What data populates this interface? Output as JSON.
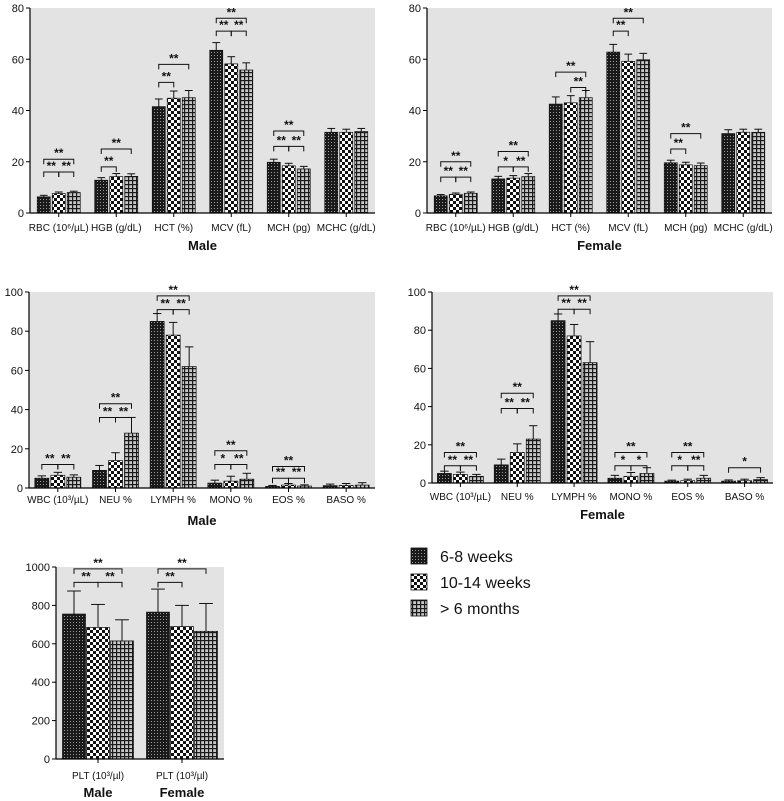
{
  "legend": {
    "placement": "right",
    "entries": [
      {
        "label": "6-8 weeks",
        "pattern": "dots-dense"
      },
      {
        "label": "10-14 weeks",
        "pattern": "checker"
      },
      {
        "label": "> 6 months",
        "pattern": "grid"
      }
    ]
  },
  "colors": {
    "panel_bg": "#e3e3e3",
    "bar_ink": "#1a1a1a",
    "axis": "#000000"
  },
  "chart_data": [
    {
      "type": "bar",
      "title": "Male",
      "ylim": [
        0,
        80
      ],
      "yticks": [
        0,
        20,
        40,
        60,
        80
      ],
      "grid": false,
      "categories": [
        "RBC (10⁶/µL)",
        "HGB (g/dL)",
        "HCT (%)",
        "MCV (fL)",
        "MCH (pg)",
        "MCHC (g/dL)"
      ],
      "series": [
        {
          "name": "6-8 weeks",
          "values": [
            6.3,
            12.8,
            41.5,
            63.5,
            19.8,
            31.5
          ],
          "errors": [
            0.6,
            1.0,
            3.0,
            3.0,
            1.2,
            1.5
          ]
        },
        {
          "name": "10-14 weeks",
          "values": [
            7.6,
            14.2,
            44.8,
            58.2,
            18.4,
            31.5
          ],
          "errors": [
            0.6,
            1.2,
            2.8,
            2.8,
            1.0,
            1.2
          ]
        },
        {
          "name": "> 6 months",
          "values": [
            8.0,
            14.3,
            45.0,
            55.8,
            17.2,
            31.8
          ],
          "errors": [
            0.5,
            1.0,
            2.8,
            2.8,
            1.0,
            1.2
          ]
        }
      ],
      "annotations": [
        {
          "category": 0,
          "from": 0,
          "to": 2,
          "label": "**",
          "y": 21
        },
        {
          "category": 0,
          "from": 0,
          "to": 1,
          "label": "**",
          "y": 16
        },
        {
          "category": 0,
          "from": 1,
          "to": 2,
          "label": "**",
          "y": 16
        },
        {
          "category": 1,
          "from": 0,
          "to": 2,
          "label": "**",
          "y": 25
        },
        {
          "category": 1,
          "from": 0,
          "to": 1,
          "label": "**",
          "y": 18
        },
        {
          "category": 2,
          "from": 0,
          "to": 2,
          "label": "**",
          "y": 58
        },
        {
          "category": 2,
          "from": 0,
          "to": 1,
          "label": "**",
          "y": 51
        },
        {
          "category": 3,
          "from": 0,
          "to": 2,
          "label": "**",
          "y": 76
        },
        {
          "category": 3,
          "from": 0,
          "to": 1,
          "label": "**",
          "y": 71
        },
        {
          "category": 3,
          "from": 1,
          "to": 2,
          "label": "**",
          "y": 71
        },
        {
          "category": 4,
          "from": 0,
          "to": 2,
          "label": "**",
          "y": 32
        },
        {
          "category": 4,
          "from": 0,
          "to": 1,
          "label": "**",
          "y": 26
        },
        {
          "category": 4,
          "from": 1,
          "to": 2,
          "label": "**",
          "y": 26
        }
      ]
    },
    {
      "type": "bar",
      "title": "Female",
      "ylim": [
        0,
        80
      ],
      "yticks": [
        0,
        20,
        40,
        60,
        80
      ],
      "grid": false,
      "categories": [
        "RBC (10⁶/µL)",
        "HGB (g/dL)",
        "HCT (%)",
        "MCV (fL)",
        "MCH (pg)",
        "MCHC (g/dL)"
      ],
      "series": [
        {
          "name": "6-8 weeks",
          "values": [
            6.7,
            13.3,
            42.5,
            62.8,
            19.6,
            31.0
          ],
          "errors": [
            0.5,
            1.0,
            2.8,
            3.0,
            1.0,
            1.5
          ]
        },
        {
          "name": "10-14 weeks",
          "values": [
            7.3,
            13.6,
            43.0,
            59.2,
            18.8,
            31.5
          ],
          "errors": [
            0.5,
            1.0,
            2.8,
            2.8,
            1.0,
            1.2
          ]
        },
        {
          "name": "> 6 months",
          "values": [
            7.7,
            14.2,
            45.0,
            59.8,
            18.5,
            31.5
          ],
          "errors": [
            0.5,
            1.2,
            2.8,
            2.5,
            1.0,
            1.2
          ]
        }
      ],
      "annotations": [
        {
          "category": 0,
          "from": 0,
          "to": 2,
          "label": "**",
          "y": 20
        },
        {
          "category": 0,
          "from": 0,
          "to": 1,
          "label": "**",
          "y": 14
        },
        {
          "category": 0,
          "from": 1,
          "to": 2,
          "label": "**",
          "y": 14
        },
        {
          "category": 1,
          "from": 0,
          "to": 2,
          "label": "**",
          "y": 24
        },
        {
          "category": 1,
          "from": 0,
          "to": 1,
          "label": "*",
          "y": 18
        },
        {
          "category": 1,
          "from": 1,
          "to": 2,
          "label": "**",
          "y": 18
        },
        {
          "category": 2,
          "from": 0,
          "to": 2,
          "label": "**",
          "y": 55
        },
        {
          "category": 2,
          "from": 1,
          "to": 2,
          "label": "**",
          "y": 49
        },
        {
          "category": 3,
          "from": 0,
          "to": 2,
          "label": "**",
          "y": 76
        },
        {
          "category": 3,
          "from": 0,
          "to": 1,
          "label": "**",
          "y": 71
        },
        {
          "category": 4,
          "from": 0,
          "to": 2,
          "label": "**",
          "y": 31
        },
        {
          "category": 4,
          "from": 0,
          "to": 1,
          "label": "**",
          "y": 25
        }
      ]
    },
    {
      "type": "bar",
      "title": "Male",
      "ylim": [
        0,
        100
      ],
      "yticks": [
        0,
        20,
        40,
        60,
        80,
        100
      ],
      "grid": false,
      "categories": [
        "WBC (10³/µL)",
        "NEU %",
        "LYMPH %",
        "MONO %",
        "EOS %",
        "BASO %"
      ],
      "series": [
        {
          "name": "6-8 weeks",
          "values": [
            5.0,
            9.0,
            85.0,
            2.5,
            0.8,
            1.2
          ],
          "errors": [
            1.2,
            2.5,
            4.0,
            1.5,
            0.5,
            0.8
          ]
        },
        {
          "name": "10-14 weeks",
          "values": [
            6.5,
            14.0,
            78.0,
            3.5,
            1.5,
            1.3
          ],
          "errors": [
            1.5,
            4.0,
            6.5,
            2.5,
            0.8,
            1.0
          ]
        },
        {
          "name": "> 6 months",
          "values": [
            5.5,
            28.0,
            62.0,
            4.5,
            1.0,
            1.5
          ],
          "errors": [
            1.2,
            8.0,
            10.0,
            3.0,
            0.6,
            1.2
          ]
        }
      ],
      "annotations": [
        {
          "category": 0,
          "from": 0,
          "to": 1,
          "label": "**",
          "y": 12
        },
        {
          "category": 0,
          "from": 1,
          "to": 2,
          "label": "**",
          "y": 12
        },
        {
          "category": 1,
          "from": 0,
          "to": 2,
          "label": "**",
          "y": 43
        },
        {
          "category": 1,
          "from": 0,
          "to": 1,
          "label": "**",
          "y": 36
        },
        {
          "category": 1,
          "from": 1,
          "to": 2,
          "label": "**",
          "y": 36
        },
        {
          "category": 2,
          "from": 0,
          "to": 2,
          "label": "**",
          "y": 98
        },
        {
          "category": 2,
          "from": 0,
          "to": 1,
          "label": "**",
          "y": 91
        },
        {
          "category": 2,
          "from": 1,
          "to": 2,
          "label": "**",
          "y": 91
        },
        {
          "category": 3,
          "from": 0,
          "to": 2,
          "label": "**",
          "y": 19
        },
        {
          "category": 3,
          "from": 0,
          "to": 1,
          "label": "*",
          "y": 12
        },
        {
          "category": 3,
          "from": 1,
          "to": 2,
          "label": "**",
          "y": 12
        },
        {
          "category": 4,
          "from": 0,
          "to": 2,
          "label": "**",
          "y": 11
        },
        {
          "category": 4,
          "from": 0,
          "to": 1,
          "label": "**",
          "y": 5
        },
        {
          "category": 4,
          "from": 1,
          "to": 2,
          "label": "**",
          "y": 5
        }
      ]
    },
    {
      "type": "bar",
      "title": "Female",
      "ylim": [
        0,
        100
      ],
      "yticks": [
        0,
        20,
        40,
        60,
        80,
        100
      ],
      "grid": false,
      "categories": [
        "WBC (10³/µL)",
        "NEU %",
        "LYMPH %",
        "MONO %",
        "EOS %",
        "BASO %"
      ],
      "series": [
        {
          "name": "6-8 weeks",
          "values": [
            5.0,
            9.5,
            85.0,
            2.5,
            1.0,
            1.0
          ],
          "errors": [
            1.2,
            3.0,
            3.5,
            1.5,
            0.5,
            0.6
          ]
        },
        {
          "name": "10-14 weeks",
          "values": [
            4.5,
            16.0,
            77.0,
            3.5,
            1.2,
            1.2
          ],
          "errors": [
            1.2,
            4.5,
            6.0,
            2.0,
            0.8,
            0.8
          ]
        },
        {
          "name": "> 6 months",
          "values": [
            3.5,
            23.0,
            63.0,
            5.0,
            2.5,
            1.8
          ],
          "errors": [
            1.0,
            7.0,
            11.0,
            3.0,
            1.5,
            1.0
          ]
        }
      ],
      "annotations": [
        {
          "category": 0,
          "from": 0,
          "to": 2,
          "label": "**",
          "y": 16
        },
        {
          "category": 0,
          "from": 0,
          "to": 1,
          "label": "**",
          "y": 9
        },
        {
          "category": 0,
          "from": 1,
          "to": 2,
          "label": "**",
          "y": 9
        },
        {
          "category": 1,
          "from": 0,
          "to": 2,
          "label": "**",
          "y": 47
        },
        {
          "category": 1,
          "from": 0,
          "to": 1,
          "label": "**",
          "y": 39
        },
        {
          "category": 1,
          "from": 1,
          "to": 2,
          "label": "**",
          "y": 39
        },
        {
          "category": 2,
          "from": 0,
          "to": 2,
          "label": "**",
          "y": 98
        },
        {
          "category": 2,
          "from": 0,
          "to": 1,
          "label": "**",
          "y": 91
        },
        {
          "category": 2,
          "from": 1,
          "to": 2,
          "label": "**",
          "y": 91
        },
        {
          "category": 3,
          "from": 0,
          "to": 2,
          "label": "**",
          "y": 16
        },
        {
          "category": 3,
          "from": 0,
          "to": 1,
          "label": "*",
          "y": 9
        },
        {
          "category": 3,
          "from": 1,
          "to": 2,
          "label": "*",
          "y": 9
        },
        {
          "category": 4,
          "from": 0,
          "to": 2,
          "label": "**",
          "y": 16
        },
        {
          "category": 4,
          "from": 0,
          "to": 1,
          "label": "*",
          "y": 9
        },
        {
          "category": 4,
          "from": 1,
          "to": 2,
          "label": "**",
          "y": 9
        },
        {
          "category": 5,
          "from": 0,
          "to": 2,
          "label": "*",
          "y": 8
        }
      ]
    },
    {
      "type": "bar",
      "title": "",
      "ylim": [
        0,
        1000
      ],
      "yticks": [
        0,
        200,
        400,
        600,
        800,
        1000
      ],
      "grid": false,
      "categories": [
        "PLT (10³/µl)",
        "PLT (10³/µl)"
      ],
      "category_titles": [
        "Male",
        "Female"
      ],
      "series": [
        {
          "name": "6-8 weeks",
          "values": [
            755,
            765
          ],
          "errors": [
            120,
            120
          ]
        },
        {
          "name": "10-14 weeks",
          "values": [
            685,
            690
          ],
          "errors": [
            120,
            110
          ]
        },
        {
          "name": "> 6 months",
          "values": [
            615,
            665
          ],
          "errors": [
            110,
            145
          ]
        }
      ],
      "annotations": [
        {
          "category": 0,
          "from": 0,
          "to": 2,
          "label": "**",
          "y": 990
        },
        {
          "category": 0,
          "from": 0,
          "to": 1,
          "label": "**",
          "y": 920
        },
        {
          "category": 0,
          "from": 1,
          "to": 2,
          "label": "**",
          "y": 920
        },
        {
          "category": 1,
          "from": 0,
          "to": 2,
          "label": "**",
          "y": 990
        },
        {
          "category": 1,
          "from": 0,
          "to": 1,
          "label": "**",
          "y": 920
        }
      ]
    }
  ]
}
